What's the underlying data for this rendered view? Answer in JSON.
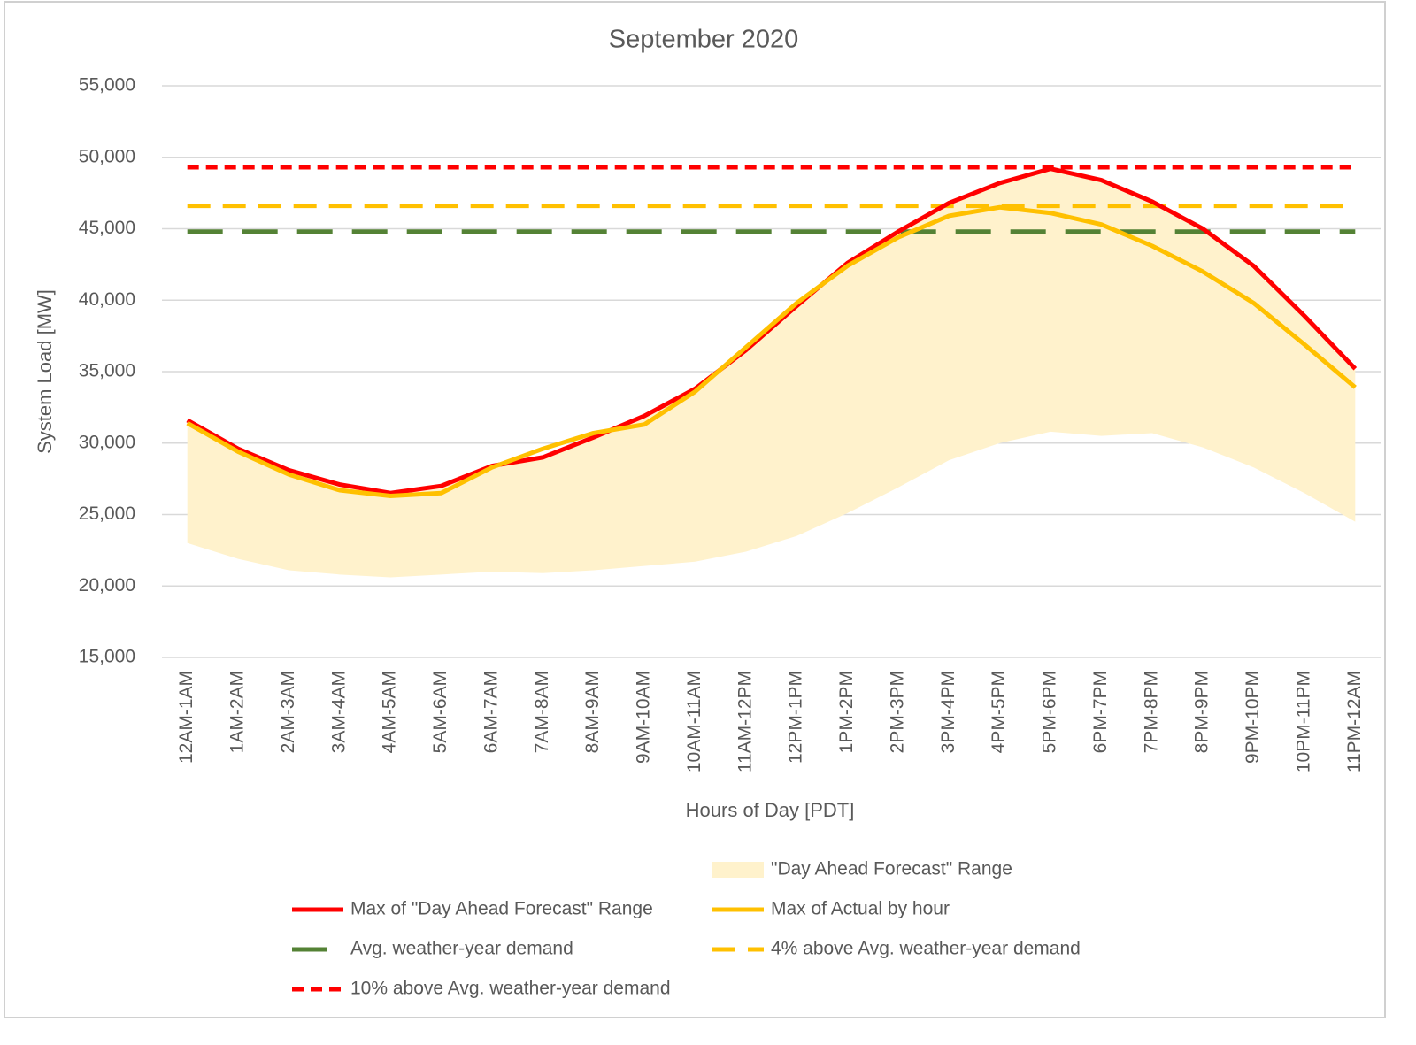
{
  "chart_data": {
    "type": "line",
    "title": "September 2020",
    "x_label": "Hours of Day [PDT]",
    "y_label": "System Load [MW]",
    "categories": [
      "12AM-1AM",
      "1AM-2AM",
      "2AM-3AM",
      "3AM-4AM",
      "4AM-5AM",
      "5AM-6AM",
      "6AM-7AM",
      "7AM-8AM",
      "8AM-9AM",
      "9AM-10AM",
      "10AM-11AM",
      "11AM-12PM",
      "12PM-1PM",
      "1PM-2PM",
      "2PM-3PM",
      "3PM-4PM",
      "4PM-5PM",
      "5PM-6PM",
      "6PM-7PM",
      "7PM-8PM",
      "8PM-9PM",
      "9PM-10PM",
      "10PM-11PM",
      "11PM-12AM"
    ],
    "ylim": [
      15000,
      55000
    ],
    "yticks": [
      {
        "value": 15000,
        "label": "15,000"
      },
      {
        "value": 20000,
        "label": "20,000"
      },
      {
        "value": 25000,
        "label": "25,000"
      },
      {
        "value": 30000,
        "label": "30,000"
      },
      {
        "value": 35000,
        "label": "35,000"
      },
      {
        "value": 40000,
        "label": "40,000"
      },
      {
        "value": 45000,
        "label": "45,000"
      },
      {
        "value": 50000,
        "label": "50,000"
      },
      {
        "value": 55000,
        "label": "55,000"
      }
    ],
    "grid": true,
    "legend": "bottom",
    "series": [
      {
        "name": "\"Day Ahead Forecast\" Range",
        "type": "range",
        "color": "#fff2cc",
        "low": [
          23000,
          21900,
          21100,
          20800,
          20600,
          20800,
          21000,
          20900,
          21100,
          21400,
          21700,
          22400,
          23500,
          25100,
          26900,
          28800,
          30000,
          30800,
          30500,
          30700,
          29700,
          28300,
          26500,
          24500
        ],
        "high": [
          31600,
          29600,
          28100,
          27100,
          26500,
          27000,
          28400,
          29000,
          30400,
          31900,
          33800,
          36500,
          39600,
          42600,
          44800,
          46800,
          48200,
          49200,
          48400,
          46900,
          45000,
          42400,
          38900,
          35200
        ]
      },
      {
        "name": "Max of \"Day Ahead Forecast\" Range",
        "type": "line",
        "color": "#ff0000",
        "dash": "solid",
        "values": [
          31600,
          29600,
          28100,
          27100,
          26500,
          27000,
          28400,
          29000,
          30400,
          31900,
          33800,
          36500,
          39600,
          42600,
          44800,
          46800,
          48200,
          49200,
          48400,
          46900,
          45000,
          42400,
          38900,
          35200
        ]
      },
      {
        "name": "Max of Actual by hour",
        "type": "line",
        "color": "#ffc000",
        "dash": "solid",
        "values": [
          31400,
          29400,
          27800,
          26700,
          26300,
          26500,
          28300,
          29600,
          30700,
          31300,
          33600,
          36700,
          39800,
          42400,
          44400,
          45900,
          46500,
          46100,
          45300,
          43800,
          42000,
          39800,
          36900,
          33900
        ]
      },
      {
        "name": "Avg. weather-year demand",
        "type": "hline",
        "color": "#548235",
        "dash": "long",
        "value": 44800
      },
      {
        "name": "4% above Avg. weather-year demand",
        "type": "hline",
        "color": "#ffc000",
        "dash": "medium",
        "value": 46600
      },
      {
        "name": "10% above Avg. weather-year demand",
        "type": "hline",
        "color": "#ff0000",
        "dash": "short",
        "value": 49300
      }
    ]
  }
}
